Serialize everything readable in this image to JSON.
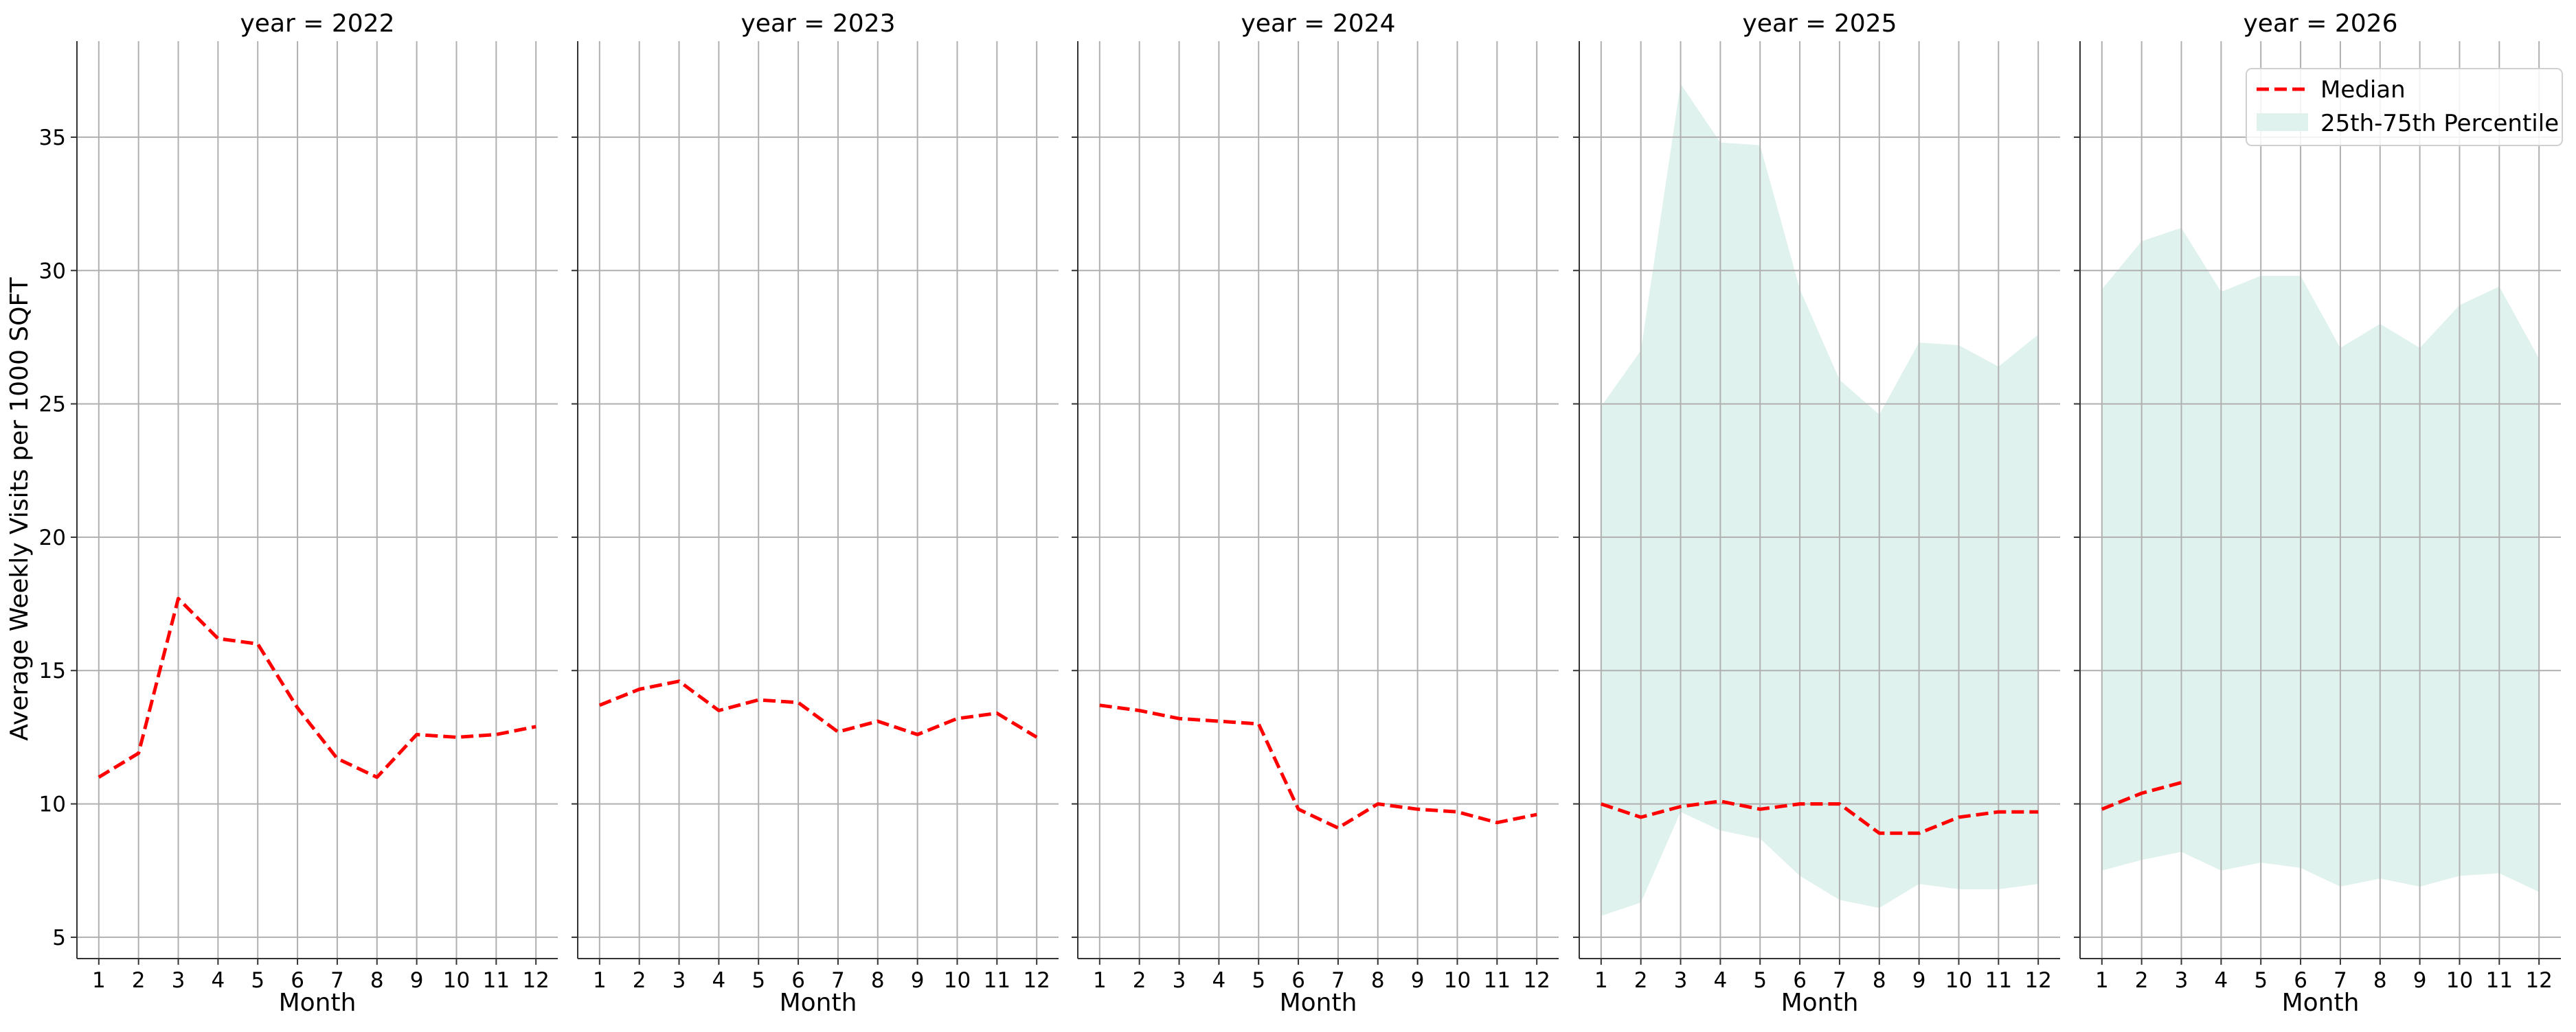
{
  "chart_data": {
    "type": "line",
    "ylabel": "Average Weekly Visits per 1000 SQFT",
    "xlabel": "Month",
    "ylim": [
      4.2,
      38.6
    ],
    "xlim": [
      0.45,
      12.55
    ],
    "y_ticks": [
      5,
      10,
      15,
      20,
      25,
      30,
      35
    ],
    "x_ticks": [
      1,
      2,
      3,
      4,
      5,
      6,
      7,
      8,
      9,
      10,
      11,
      12
    ],
    "grid": true,
    "legend_position": "upper right",
    "legend": [
      {
        "label": "Median",
        "kind": "line",
        "color": "#ff0000",
        "style": "dashed"
      },
      {
        "label": "25th-75th Percentile",
        "kind": "band",
        "color": "#dff2ed"
      }
    ],
    "panels": [
      {
        "title": "year = 2022",
        "x": [
          1,
          2,
          3,
          4,
          5,
          6,
          7,
          8,
          9,
          10,
          11,
          12
        ],
        "median": [
          11.0,
          11.9,
          17.7,
          16.2,
          16.0,
          13.6,
          11.7,
          11.0,
          12.6,
          12.5,
          12.6,
          12.9
        ],
        "p25": [],
        "p75": []
      },
      {
        "title": "year = 2023",
        "x": [
          1,
          2,
          3,
          4,
          5,
          6,
          7,
          8,
          9,
          10,
          11,
          12
        ],
        "median": [
          13.7,
          14.3,
          14.6,
          13.5,
          13.9,
          13.8,
          12.7,
          13.1,
          12.6,
          13.2,
          13.4,
          12.5
        ],
        "p25": [],
        "p75": []
      },
      {
        "title": "year = 2024",
        "x": [
          1,
          2,
          3,
          4,
          5,
          6,
          7,
          8,
          9,
          10,
          11,
          12
        ],
        "median": [
          13.7,
          13.5,
          13.2,
          13.1,
          13.0,
          9.8,
          9.1,
          10.0,
          9.8,
          9.7,
          9.3,
          9.6
        ],
        "p25": [],
        "p75": []
      },
      {
        "title": "year = 2025",
        "x": [
          1,
          2,
          3,
          4,
          5,
          6,
          7,
          8,
          9,
          10,
          11,
          12
        ],
        "median": [
          10.0,
          9.5,
          9.9,
          10.1,
          9.8,
          10.0,
          10.0,
          8.9,
          8.9,
          9.5,
          9.7,
          9.7
        ],
        "p25": [
          5.8,
          6.3,
          9.7,
          9.0,
          8.7,
          7.3,
          6.4,
          6.1,
          7.0,
          6.8,
          6.8,
          7.0
        ],
        "p75": [
          24.9,
          27.0,
          37.0,
          34.8,
          34.7,
          29.3,
          25.9,
          24.6,
          27.3,
          27.2,
          26.4,
          27.6
        ]
      },
      {
        "title": "year = 2026",
        "x": [
          1,
          2,
          3
        ],
        "median": [
          9.8,
          10.4,
          10.8
        ],
        "band_x": [
          1,
          2,
          3,
          4,
          5,
          6,
          7,
          8,
          9,
          10,
          11,
          12
        ],
        "p25": [
          7.5,
          7.9,
          8.2,
          7.5,
          7.8,
          7.6,
          6.9,
          7.2,
          6.9,
          7.3,
          7.4,
          6.7
        ],
        "p75": [
          29.3,
          31.1,
          31.6,
          29.2,
          29.8,
          29.8,
          27.1,
          28.0,
          27.1,
          28.7,
          29.4,
          26.7
        ]
      }
    ]
  }
}
